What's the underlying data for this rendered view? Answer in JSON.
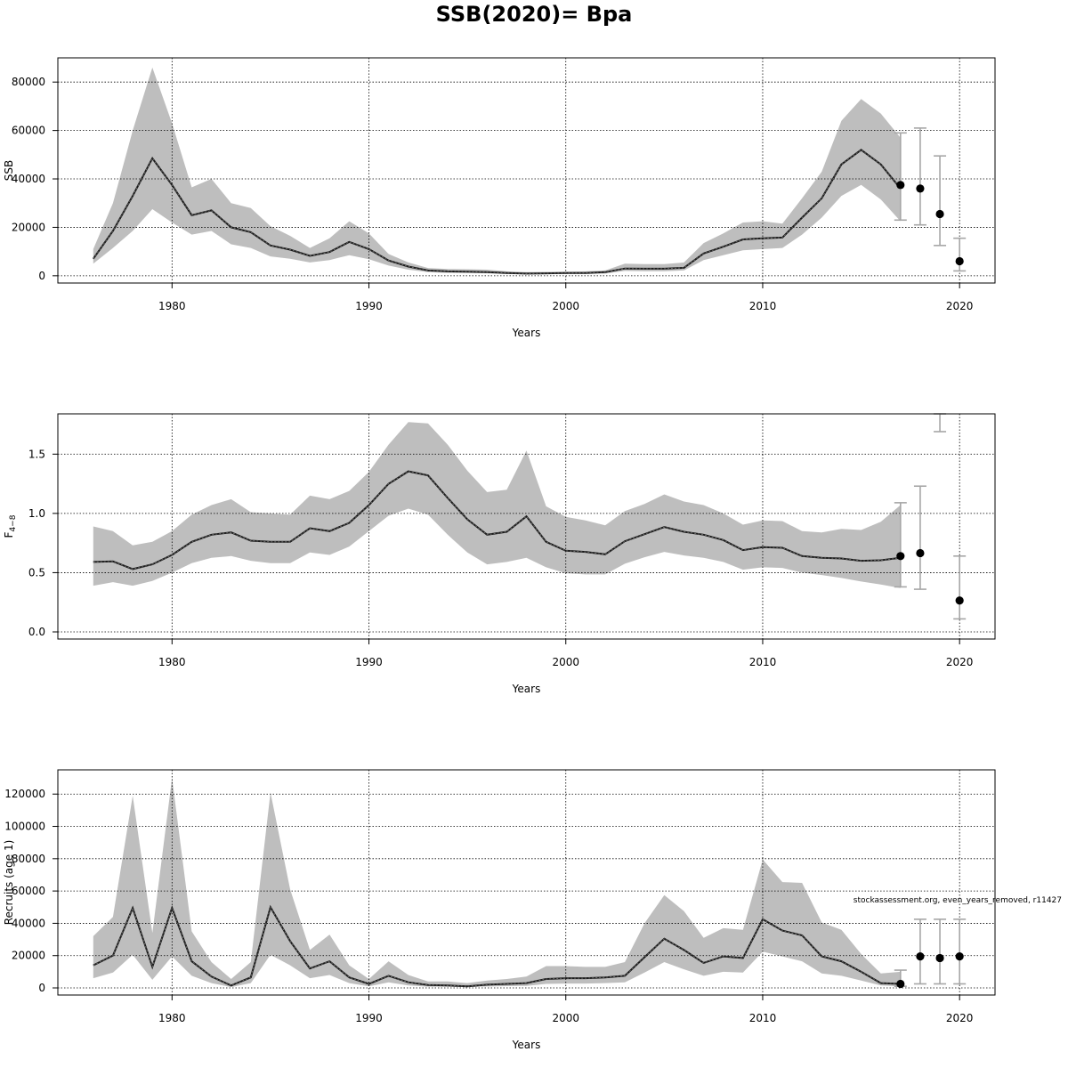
{
  "title": "SSB(2020)= Bpa",
  "watermark": "stockassessment.org, even_years_removed, r11427",
  "colors": {
    "band": "#bebebe",
    "line": "#000000",
    "interval": "#a6a6a6",
    "grid": "#000000"
  },
  "chart_data": [
    {
      "type": "line",
      "ylabel": "SSB",
      "xlabel": "Years",
      "xlim": [
        1974.2,
        2021.8
      ],
      "ylim": [
        -3000,
        90000
      ],
      "xticks": [
        1980,
        1990,
        2000,
        2010,
        2020
      ],
      "yticks": [
        0,
        20000,
        40000,
        60000,
        80000
      ],
      "x": [
        1976,
        1977,
        1978,
        1979,
        1980,
        1981,
        1982,
        1983,
        1984,
        1985,
        1986,
        1987,
        1988,
        1989,
        1990,
        1991,
        1992,
        1993,
        1994,
        1995,
        1996,
        1997,
        1998,
        1999,
        2000,
        2001,
        2002,
        2003,
        2004,
        2005,
        2006,
        2007,
        2008,
        2009,
        2010,
        2011,
        2012,
        2013,
        2014,
        2015,
        2016,
        2017
      ],
      "estimate": [
        7000,
        18500,
        33000,
        48500,
        37500,
        25000,
        27000,
        20000,
        18000,
        12500,
        10800,
        8200,
        9800,
        14000,
        11000,
        6300,
        3800,
        2200,
        1800,
        1700,
        1500,
        1100,
        900,
        1000,
        1100,
        1100,
        1500,
        3000,
        2900,
        2900,
        3300,
        9200,
        12000,
        15000,
        15500,
        15800,
        24000,
        32000,
        46000,
        52000,
        46000,
        36000
      ],
      "upper": [
        11000,
        30000,
        60000,
        86000,
        63000,
        36500,
        40000,
        30000,
        28000,
        20500,
        16500,
        11500,
        15500,
        22500,
        17500,
        9000,
        5500,
        3200,
        2800,
        2700,
        2500,
        1800,
        1500,
        1600,
        1700,
        1800,
        2200,
        5000,
        4800,
        4800,
        5500,
        13500,
        17500,
        22000,
        22500,
        21500,
        32000,
        43000,
        64000,
        73000,
        67000,
        57000
      ],
      "lower": [
        5000,
        11500,
        18500,
        27500,
        22000,
        17000,
        18500,
        13000,
        11500,
        8000,
        7000,
        5500,
        6500,
        8500,
        6800,
        4200,
        2500,
        1500,
        1200,
        1100,
        1000,
        700,
        600,
        650,
        700,
        700,
        900,
        2000,
        1900,
        1900,
        2200,
        6500,
        8500,
        10500,
        11000,
        11500,
        17000,
        24000,
        33000,
        37500,
        31500,
        22500
      ],
      "points": [
        {
          "x": 2017,
          "value": 37500,
          "low": 23000,
          "high": 59000
        },
        {
          "x": 2018,
          "value": 36000,
          "low": 21000,
          "high": 61000
        },
        {
          "x": 2019,
          "value": 25500,
          "low": 12500,
          "high": 49500
        },
        {
          "x": 2020,
          "value": 6000,
          "low": 2000,
          "high": 15500
        }
      ]
    },
    {
      "type": "line",
      "ylabel": "F",
      "ylabel_sub": "4−8",
      "xlabel": "Years",
      "xlim": [
        1974.2,
        2021.8
      ],
      "ylim": [
        -0.06,
        1.84
      ],
      "xticks": [
        1980,
        1990,
        2000,
        2010,
        2020
      ],
      "yticks": [
        0.0,
        0.5,
        1.0,
        1.5
      ],
      "ytick_labels": [
        "0.0",
        "0.5",
        "1.0",
        "1.5"
      ],
      "x": [
        1976,
        1977,
        1978,
        1979,
        1980,
        1981,
        1982,
        1983,
        1984,
        1985,
        1986,
        1987,
        1988,
        1989,
        1990,
        1991,
        1992,
        1993,
        1994,
        1995,
        1996,
        1997,
        1998,
        1999,
        2000,
        2001,
        2002,
        2003,
        2004,
        2005,
        2006,
        2007,
        2008,
        2009,
        2010,
        2011,
        2012,
        2013,
        2014,
        2015,
        2016,
        2017
      ],
      "estimate": [
        0.59,
        0.595,
        0.53,
        0.57,
        0.65,
        0.76,
        0.82,
        0.84,
        0.77,
        0.76,
        0.76,
        0.875,
        0.85,
        0.92,
        1.07,
        1.25,
        1.355,
        1.32,
        1.13,
        0.95,
        0.82,
        0.845,
        0.975,
        0.76,
        0.685,
        0.675,
        0.655,
        0.765,
        0.825,
        0.885,
        0.845,
        0.82,
        0.775,
        0.69,
        0.715,
        0.71,
        0.64,
        0.625,
        0.62,
        0.6,
        0.605,
        0.625
      ],
      "upper": [
        0.89,
        0.85,
        0.73,
        0.76,
        0.85,
        0.99,
        1.07,
        1.12,
        1.01,
        1.0,
        0.99,
        1.15,
        1.12,
        1.19,
        1.35,
        1.58,
        1.77,
        1.76,
        1.58,
        1.36,
        1.18,
        1.2,
        1.53,
        1.06,
        0.97,
        0.94,
        0.9,
        1.02,
        1.08,
        1.16,
        1.1,
        1.07,
        1.0,
        0.905,
        0.94,
        0.935,
        0.85,
        0.84,
        0.87,
        0.86,
        0.93,
        1.07
      ],
      "lower": [
        0.39,
        0.42,
        0.39,
        0.43,
        0.5,
        0.58,
        0.625,
        0.64,
        0.6,
        0.58,
        0.58,
        0.67,
        0.65,
        0.72,
        0.85,
        0.98,
        1.04,
        0.99,
        0.82,
        0.67,
        0.57,
        0.59,
        0.625,
        0.545,
        0.495,
        0.485,
        0.485,
        0.575,
        0.63,
        0.675,
        0.645,
        0.625,
        0.59,
        0.525,
        0.545,
        0.54,
        0.5,
        0.48,
        0.455,
        0.425,
        0.4,
        0.37
      ],
      "points": [
        {
          "x": 2017,
          "value": 0.64,
          "low": 0.38,
          "high": 1.09
        },
        {
          "x": 2018,
          "value": 0.665,
          "low": 0.36,
          "high": 1.23
        },
        {
          "x": 2019,
          "value": null,
          "low": 1.69,
          "high": 1.84
        },
        {
          "x": 2020,
          "value": 0.265,
          "low": 0.11,
          "high": 0.64
        }
      ]
    },
    {
      "type": "line",
      "ylabel": "Recruits (age 1)",
      "xlabel": "Years",
      "xlim": [
        1974.2,
        2021.8
      ],
      "ylim": [
        -4400,
        135000
      ],
      "xticks": [
        1980,
        1990,
        2000,
        2010,
        2020
      ],
      "yticks": [
        0,
        20000,
        40000,
        60000,
        80000,
        100000,
        120000
      ],
      "x": [
        1976,
        1977,
        1978,
        1979,
        1980,
        1981,
        1982,
        1983,
        1984,
        1985,
        1986,
        1987,
        1988,
        1989,
        1990,
        1991,
        1992,
        1993,
        1994,
        1995,
        1996,
        1997,
        1998,
        1999,
        2000,
        2001,
        2002,
        2003,
        2004,
        2005,
        2006,
        2007,
        2008,
        2009,
        2010,
        2011,
        2012,
        2013,
        2014,
        2015,
        2016,
        2017
      ],
      "estimate": [
        14000,
        20000,
        49500,
        13000,
        49500,
        16500,
        7000,
        1500,
        6500,
        50000,
        29000,
        12000,
        16500,
        6500,
        2500,
        7500,
        3500,
        1800,
        1500,
        1000,
        2000,
        2500,
        3000,
        5500,
        6000,
        6000,
        6500,
        7500,
        19000,
        30500,
        23500,
        15500,
        19500,
        18500,
        42500,
        35500,
        32500,
        19500,
        16500,
        10000,
        3000,
        2500
      ],
      "upper": [
        32000,
        44000,
        119000,
        34000,
        130000,
        35000,
        16000,
        5500,
        16000,
        121000,
        61000,
        23500,
        33000,
        14000,
        5500,
        16500,
        8000,
        4000,
        4000,
        3000,
        4500,
        5500,
        7000,
        13500,
        13500,
        13000,
        13000,
        16000,
        40000,
        57500,
        47500,
        31000,
        37000,
        36000,
        79500,
        65500,
        65000,
        40500,
        36000,
        21000,
        9000,
        10000
      ],
      "lower": [
        6000,
        9500,
        20500,
        5000,
        19500,
        7500,
        3000,
        500,
        3000,
        20500,
        14000,
        6000,
        8000,
        3000,
        1000,
        3500,
        1500,
        800,
        700,
        500,
        900,
        1100,
        1200,
        2500,
        2700,
        2700,
        3000,
        3500,
        9500,
        16000,
        11500,
        7500,
        10000,
        9500,
        22500,
        19500,
        16500,
        9000,
        7500,
        4500,
        1500,
        1000
      ],
      "points": [
        {
          "x": 2017,
          "value": 2500,
          "low": 1000,
          "high": 11000
        },
        {
          "x": 2018,
          "value": 19500,
          "low": 2500,
          "high": 42500
        },
        {
          "x": 2019,
          "value": 18500,
          "low": 2500,
          "high": 42500
        },
        {
          "x": 2020,
          "value": 19500,
          "low": 2500,
          "high": 42500
        }
      ]
    }
  ]
}
